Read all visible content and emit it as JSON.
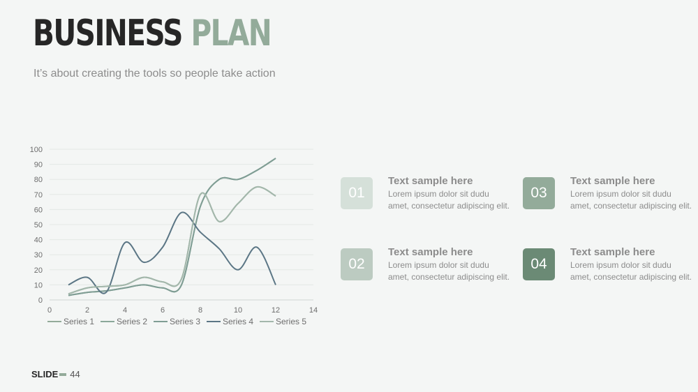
{
  "slide": {
    "title_part1": "BUSINESS",
    "title_part2": "PLAN",
    "subtitle": "It’s about creating the tools so people take action",
    "footer_label": "SLIDE",
    "footer_number": "44"
  },
  "colors": {
    "accent": "#93ab9a",
    "dark_accent": "#6b8a75",
    "series_1": "#93ab9a",
    "series_2": "#8aa89a",
    "series_3": "#7f9d94",
    "series_4": "#5b7685",
    "series_5": "#a3b7ab"
  },
  "items": [
    {
      "number": "01",
      "title": "Text sample here",
      "body": "Lorem ipsum dolor sit dudu amet, consectetur adipiscing elit.",
      "color": "#d5e0d9"
    },
    {
      "number": "02",
      "title": "Text sample here",
      "body": "Lorem ipsum dolor sit dudu amet, consectetur adipiscing elit.",
      "color": "#bccbc1"
    },
    {
      "number": "03",
      "title": "Text sample here",
      "body": "Lorem ipsum dolor sit dudu amet, consectetur adipiscing elit.",
      "color": "#93ab9a"
    },
    {
      "number": "04",
      "title": "Text sample here",
      "body": "Lorem ipsum dolor sit dudu amet, consectetur adipiscing elit.",
      "color": "#6b8a75"
    }
  ],
  "chart_data": {
    "type": "line",
    "title": "",
    "xlabel": "",
    "ylabel": "",
    "xlim": [
      0,
      14
    ],
    "ylim": [
      0,
      100
    ],
    "x_ticks": [
      0,
      2,
      4,
      6,
      8,
      10,
      12,
      14
    ],
    "y_ticks": [
      0,
      10,
      20,
      30,
      40,
      50,
      60,
      70,
      80,
      90,
      100
    ],
    "grid": "horizontal",
    "legend": "bottom",
    "smooth": true,
    "x": [
      1,
      2,
      3,
      4,
      5,
      6,
      7,
      8,
      9,
      10,
      11,
      12
    ],
    "series": [
      {
        "name": "Series 1",
        "values": [
          4,
          8,
          9,
          10,
          15,
          12,
          14,
          70,
          52,
          64,
          75,
          69
        ]
      },
      {
        "name": "Series 2",
        "values": [
          3,
          5,
          6,
          8,
          10,
          8,
          10,
          62,
          80,
          80,
          86,
          94
        ]
      },
      {
        "name": "Series 3",
        "values": [
          3,
          5,
          6,
          8,
          10,
          8,
          10,
          62,
          80,
          80,
          86,
          94
        ]
      },
      {
        "name": "Series 4",
        "values": [
          10,
          15,
          5,
          38,
          25,
          35,
          58,
          45,
          34,
          20,
          35,
          10
        ]
      },
      {
        "name": "Series 5",
        "values": [
          4,
          8,
          9,
          10,
          15,
          12,
          14,
          70,
          52,
          64,
          75,
          69
        ]
      }
    ]
  }
}
